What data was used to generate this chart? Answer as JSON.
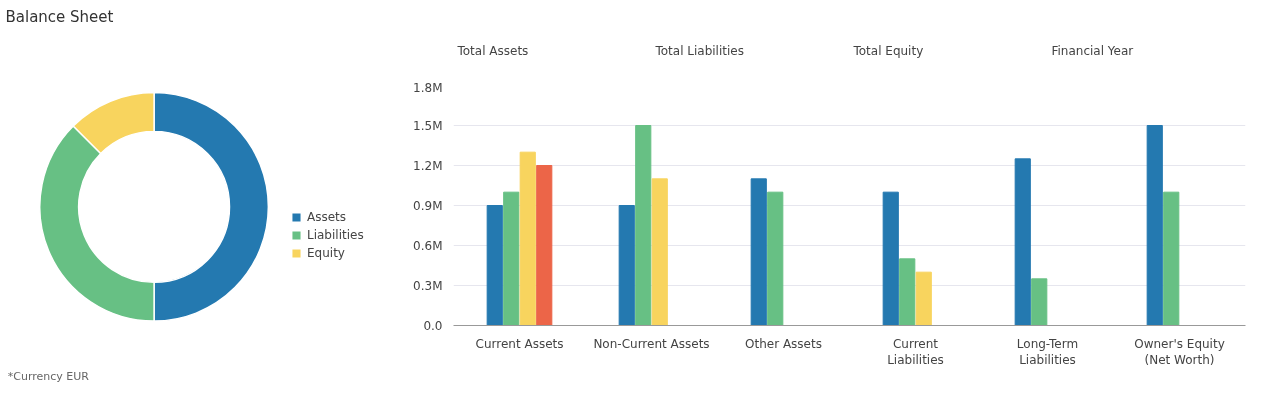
{
  "chart_data": [
    {
      "type": "donut",
      "title": "Balance Sheet",
      "categories": [
        "Assets",
        "Liabilities",
        "Equity"
      ],
      "values": [
        50,
        37.5,
        12.5
      ],
      "colors": [
        "#2479b0",
        "#67c084",
        "#f8d45e"
      ],
      "legend": "right",
      "annotations": [
        "*Currency EUR"
      ]
    },
    {
      "type": "other",
      "annotations": [
        "Total Assets",
        "Total Liabilities",
        "Total Equity",
        "Financial Year"
      ]
    },
    {
      "type": "bar",
      "categories": [
        "Current Assets",
        "Non-Current Assets",
        "Other Assets",
        "Current Liabilities",
        "Long-Term Liabilities",
        "Owner's Equity (Net Worth)"
      ],
      "series": [
        {
          "color": "#2479b0",
          "values": [
            900000,
            900000,
            1100000,
            1000000,
            1250000,
            1500000
          ]
        },
        {
          "color": "#67c084",
          "values": [
            1000000,
            1500000,
            1000000,
            500000,
            350000,
            1000000
          ]
        },
        {
          "color": "#f8d45e",
          "values": [
            1300000,
            1100000,
            null,
            400000,
            null,
            null
          ]
        },
        {
          "color": "#ec6548",
          "values": [
            1200000,
            null,
            null,
            null,
            null,
            null
          ]
        }
      ],
      "ylim": [
        0,
        1800000
      ],
      "yticks": [
        {
          "value": 0,
          "label": "0.0"
        },
        {
          "value": 300000,
          "label": "0.3M"
        },
        {
          "value": 600000,
          "label": "0.6M"
        },
        {
          "value": 900000,
          "label": "0.9M"
        },
        {
          "value": 1200000,
          "label": "1.2M"
        },
        {
          "value": 1500000,
          "label": "1.5M"
        },
        {
          "value": 1800000,
          "label": "1.8M"
        }
      ],
      "grid": "y"
    }
  ]
}
